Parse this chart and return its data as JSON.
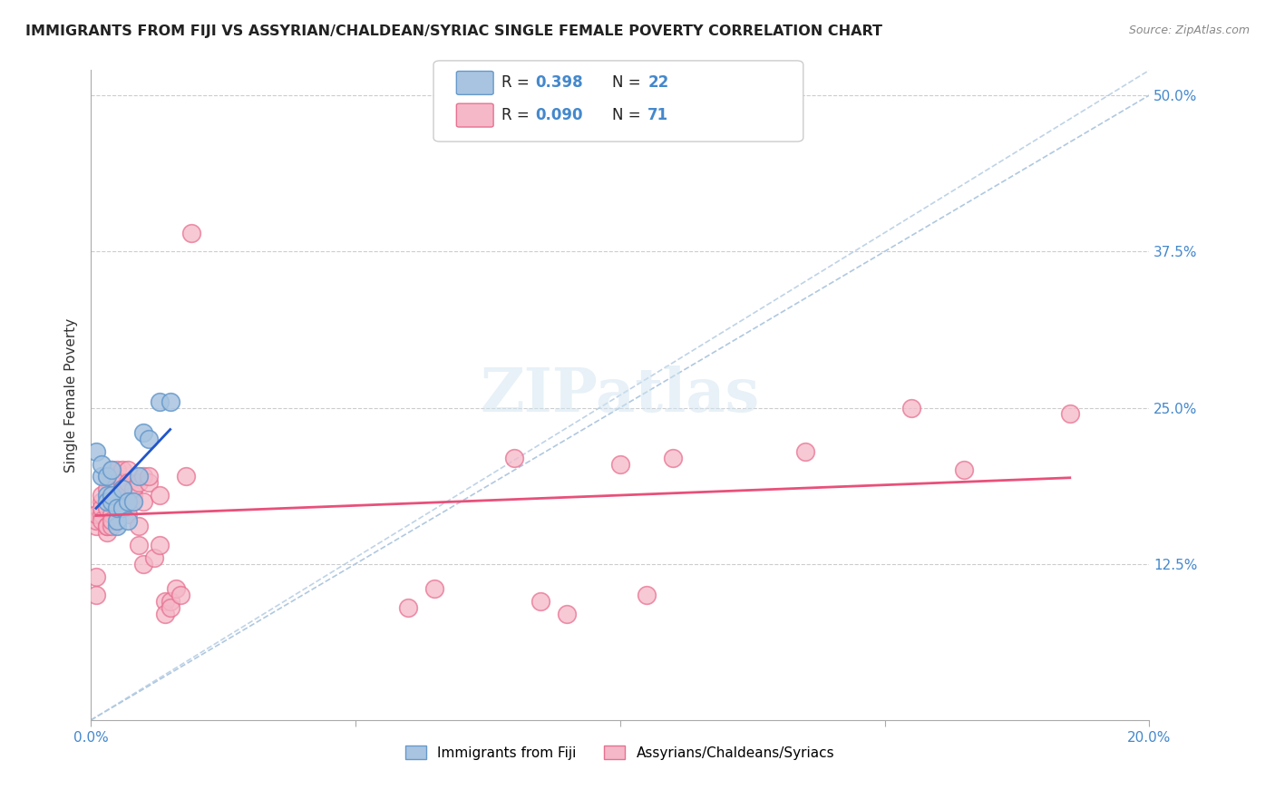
{
  "title": "IMMIGRANTS FROM FIJI VS ASSYRIAN/CHALDEAN/SYRIAC SINGLE FEMALE POVERTY CORRELATION CHART",
  "source": "Source: ZipAtlas.com",
  "xlabel": "",
  "ylabel": "Single Female Poverty",
  "xlim": [
    0.0,
    0.2
  ],
  "ylim": [
    0.0,
    0.52
  ],
  "xticks": [
    0.0,
    0.05,
    0.1,
    0.15,
    0.2
  ],
  "xticklabels": [
    "0.0%",
    "",
    "",
    "",
    "20.0%"
  ],
  "yticks_right": [
    0.125,
    0.25,
    0.375,
    0.5
  ],
  "ytick_labels_right": [
    "12.5%",
    "25.0%",
    "37.5%",
    "50.0%"
  ],
  "grid_yticks": [
    0.125,
    0.25,
    0.375,
    0.5
  ],
  "fiji_R": 0.398,
  "fiji_N": 22,
  "assyrian_R": 0.09,
  "assyrian_N": 71,
  "fiji_color": "#a8c4e0",
  "fiji_edge_color": "#6699cc",
  "assyrian_color": "#f4b8c8",
  "assyrian_edge_color": "#e87090",
  "fiji_line_color": "#2255cc",
  "assyrian_line_color": "#e8507a",
  "ref_line_color": "#b0c8e0",
  "watermark": "ZIPatlas",
  "fiji_x": [
    0.001,
    0.002,
    0.002,
    0.003,
    0.003,
    0.003,
    0.004,
    0.004,
    0.004,
    0.005,
    0.005,
    0.005,
    0.006,
    0.006,
    0.007,
    0.007,
    0.008,
    0.009,
    0.01,
    0.011,
    0.013,
    0.015
  ],
  "fiji_y": [
    0.215,
    0.195,
    0.205,
    0.18,
    0.175,
    0.195,
    0.175,
    0.18,
    0.2,
    0.155,
    0.16,
    0.17,
    0.17,
    0.185,
    0.16,
    0.175,
    0.175,
    0.195,
    0.23,
    0.225,
    0.255,
    0.255
  ],
  "assyrian_x": [
    0.001,
    0.001,
    0.001,
    0.001,
    0.001,
    0.002,
    0.002,
    0.002,
    0.002,
    0.002,
    0.003,
    0.003,
    0.003,
    0.003,
    0.003,
    0.003,
    0.004,
    0.004,
    0.004,
    0.004,
    0.004,
    0.004,
    0.005,
    0.005,
    0.005,
    0.005,
    0.005,
    0.005,
    0.006,
    0.006,
    0.006,
    0.006,
    0.006,
    0.007,
    0.007,
    0.007,
    0.007,
    0.008,
    0.008,
    0.008,
    0.009,
    0.009,
    0.009,
    0.01,
    0.01,
    0.01,
    0.011,
    0.011,
    0.012,
    0.013,
    0.013,
    0.014,
    0.014,
    0.015,
    0.015,
    0.016,
    0.017,
    0.018,
    0.019,
    0.06,
    0.065,
    0.08,
    0.085,
    0.09,
    0.1,
    0.105,
    0.11,
    0.135,
    0.155,
    0.165,
    0.185
  ],
  "assyrian_y": [
    0.155,
    0.16,
    0.165,
    0.115,
    0.1,
    0.175,
    0.165,
    0.17,
    0.16,
    0.18,
    0.15,
    0.155,
    0.185,
    0.17,
    0.195,
    0.155,
    0.175,
    0.2,
    0.195,
    0.155,
    0.165,
    0.16,
    0.19,
    0.185,
    0.175,
    0.175,
    0.2,
    0.175,
    0.19,
    0.2,
    0.175,
    0.19,
    0.185,
    0.2,
    0.19,
    0.165,
    0.175,
    0.175,
    0.18,
    0.185,
    0.14,
    0.19,
    0.155,
    0.195,
    0.125,
    0.175,
    0.19,
    0.195,
    0.13,
    0.18,
    0.14,
    0.095,
    0.085,
    0.095,
    0.09,
    0.105,
    0.1,
    0.195,
    0.39,
    0.09,
    0.105,
    0.21,
    0.095,
    0.085,
    0.205,
    0.1,
    0.21,
    0.215,
    0.25,
    0.2,
    0.245
  ]
}
